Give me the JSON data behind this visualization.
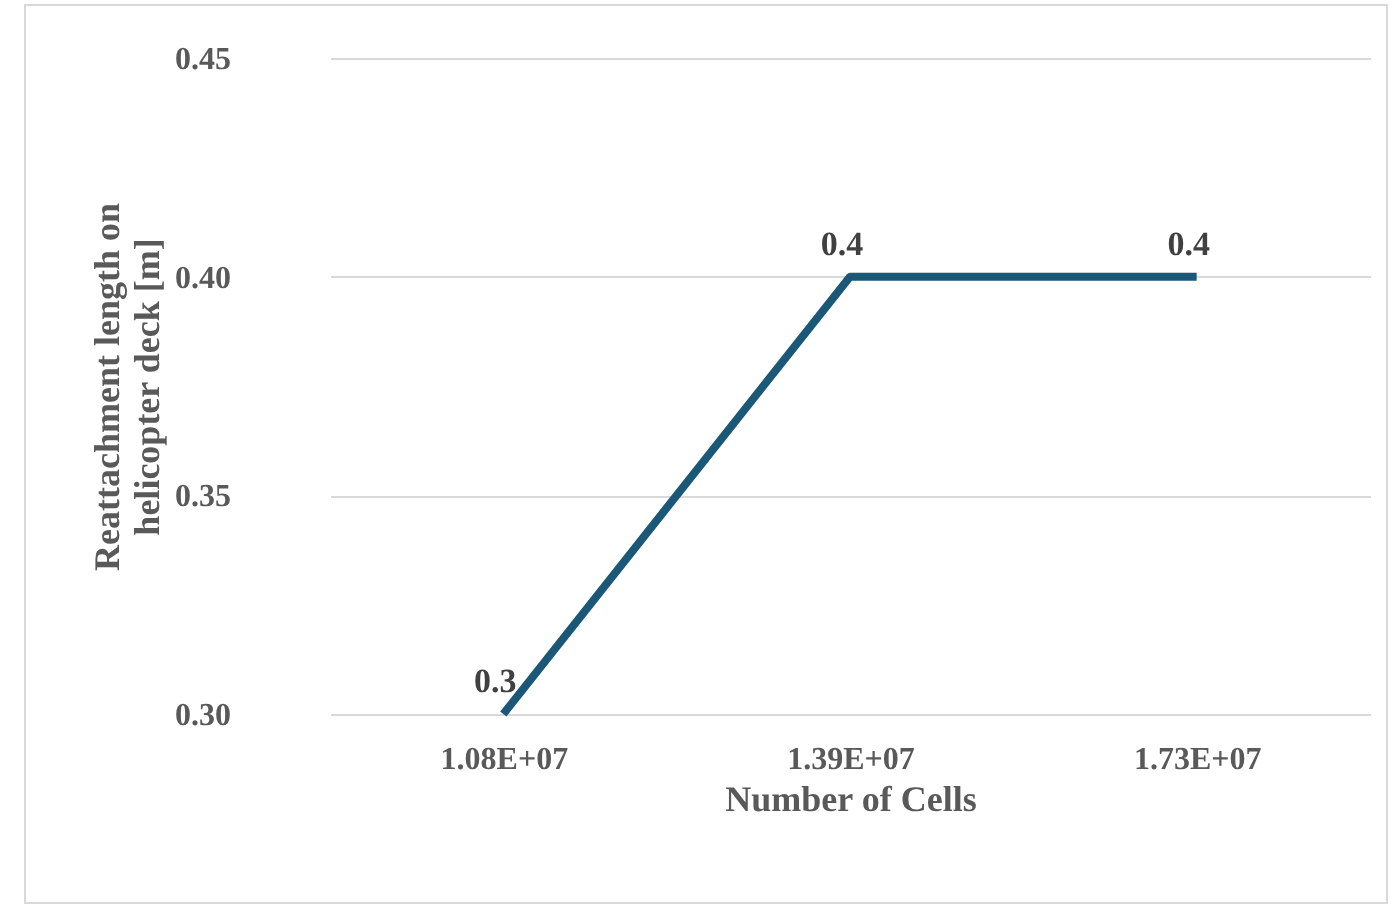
{
  "chart_data": {
    "type": "line",
    "xlabel": "Number of Cells",
    "ylabel": "Reattachment length on helicopter deck [m]",
    "categories": [
      "1.08E+07",
      "1.39E+07",
      "1.73E+07"
    ],
    "series": [
      {
        "color": "#1b5878",
        "values": [
          0.3,
          0.4,
          0.4
        ]
      }
    ],
    "ylim": [
      0.3,
      0.45
    ],
    "yticks": [
      {
        "value": 0.3,
        "label": "0.30"
      },
      {
        "value": 0.35,
        "label": "0.35"
      },
      {
        "value": 0.4,
        "label": "0.40"
      },
      {
        "value": 0.45,
        "label": "0.45"
      }
    ],
    "grid": "y",
    "data_labels": true,
    "marker": "none"
  }
}
